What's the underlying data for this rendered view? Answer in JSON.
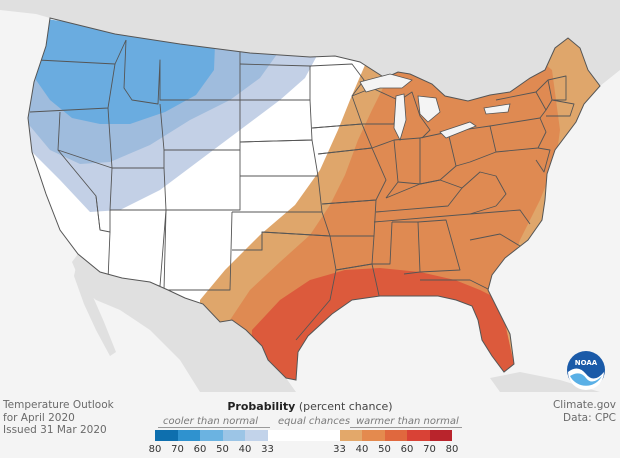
{
  "outlook": {
    "title_line1": "Temperature Outlook",
    "title_line2": "for April 2020",
    "issued": "Issued 31 Mar 2020"
  },
  "credits": {
    "site": "Climate.gov",
    "data_source": "Data: CPC"
  },
  "legend": {
    "title_bold": "Probability",
    "title_rest": " (percent chance)",
    "cooler_label": "cooler than normal",
    "equal_label": "equal chances",
    "warmer_label": "warmer than normal",
    "ticks": [
      "80",
      "70",
      "60",
      "50",
      "40",
      "33",
      "33",
      "40",
      "50",
      "60",
      "70",
      "80"
    ],
    "cool_colors": [
      "#0e6fae",
      "#2f92cf",
      "#6bb3e1",
      "#9cc5e6",
      "#c2d3ea"
    ],
    "warm_colors": [
      "#e3a86a",
      "#e48a4e",
      "#e0683e",
      "#d94236",
      "#b9242c"
    ],
    "equal_color": "#ffffff"
  },
  "map": {
    "region_colors": {
      "cool_33_40": "#c3d0e6",
      "cool_40_50": "#9fbcdd",
      "cool_50_60": "#6aace0",
      "warm_33_40": "#dfa66b",
      "warm_40_50": "#df8a52",
      "warm_50_60": "#dc5a3c",
      "land": "#ffffff",
      "neighbor_land": "#e0e0e0",
      "water": "#f4f4f4",
      "border": "#555555"
    }
  },
  "logo": {
    "text": "NOAA"
  }
}
